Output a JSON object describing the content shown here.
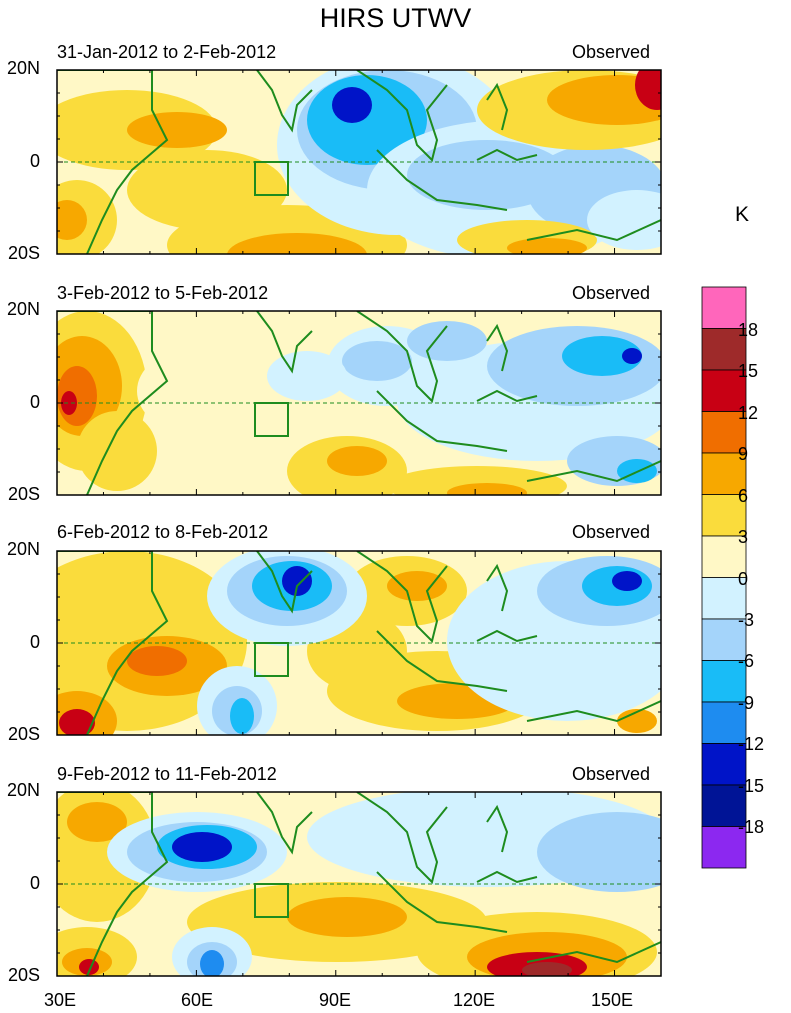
{
  "title": "HIRS UTWV",
  "units": "K",
  "panels": [
    {
      "dates": "31-Jan-2012 to 2-Feb-2012",
      "source": "Observed"
    },
    {
      "dates": "3-Feb-2012 to 5-Feb-2012",
      "source": "Observed"
    },
    {
      "dates": "6-Feb-2012 to 8-Feb-2012",
      "source": "Observed"
    },
    {
      "dates": "9-Feb-2012 to 11-Feb-2012",
      "source": "Observed"
    }
  ],
  "lat_labels": {
    "north": "20N",
    "equator": "0",
    "south": "20S"
  },
  "lon_labels": [
    "30E",
    "60E",
    "90E",
    "120E",
    "150E"
  ],
  "colorbar": {
    "levels": [
      "18",
      "15",
      "12",
      "9",
      "6",
      "3",
      "0",
      "-3",
      "-6",
      "-9",
      "-12",
      "-15",
      "-18"
    ],
    "colors": [
      "#ff66bb",
      "#9e2a2a",
      "#c80014",
      "#f06e00",
      "#f7a800",
      "#fadc3c",
      "#fff8c6",
      "#d2f2ff",
      "#a4d4fa",
      "#19bcf7",
      "#1e8cf0",
      "#0014c8",
      "#001496",
      "#8c28f0"
    ]
  },
  "colors": {
    "coast": "#1e8c1e",
    "equator": "#1e8c1e"
  }
}
